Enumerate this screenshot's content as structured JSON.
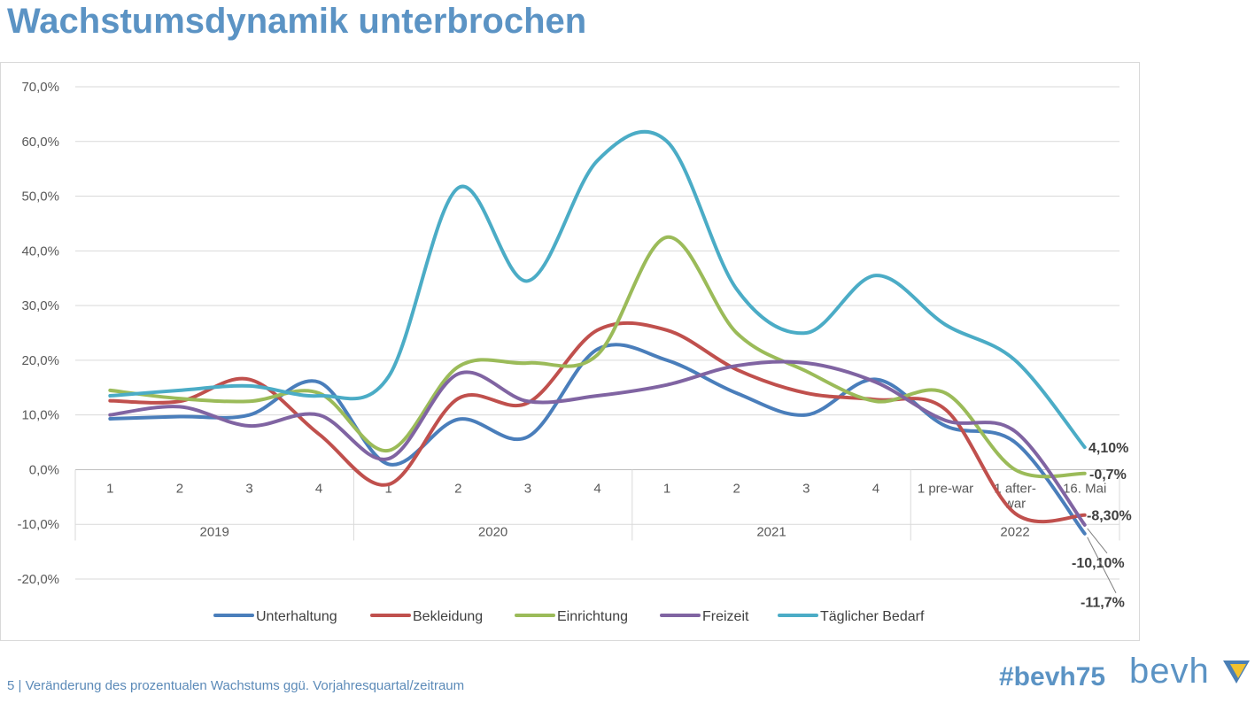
{
  "slide": {
    "title": "Wachstumsdynamik unterbrochen",
    "footer_text": "5 |  Veränderung des prozentualen Wachstums ggü. Vorjahresquartal/zeitraum",
    "hashtag": "#bevh75",
    "logo_text": "bevh"
  },
  "colors": {
    "title": "#5b93c4",
    "footer": "#5b8ab8",
    "logo_mark_blue": "#4a7fb5",
    "logo_mark_yellow": "#f2c12e"
  },
  "chart_data": {
    "type": "line",
    "smooth": true,
    "grid": "horizontal",
    "legend_position": "bottom",
    "ylim": [
      -0.2,
      0.7
    ],
    "yticks": [
      0.7,
      0.6,
      0.5,
      0.4,
      0.3,
      0.2,
      0.1,
      0.0,
      -0.1,
      -0.2
    ],
    "ytick_labels": [
      "70,0%",
      "60,0%",
      "50,0%",
      "40,0%",
      "30,0%",
      "20,0%",
      "10,0%",
      "0,0%",
      "-10,0%",
      "-20,0%"
    ],
    "categories": [
      "1",
      "2",
      "3",
      "4",
      "1",
      "2",
      "3",
      "4",
      "1",
      "2",
      "3",
      "4",
      "1 pre-war",
      "1 after-war",
      "16. Mai"
    ],
    "groups": [
      {
        "label": "2019",
        "count": 4
      },
      {
        "label": "2020",
        "count": 4
      },
      {
        "label": "2021",
        "count": 4
      },
      {
        "label": "2022",
        "count": 3
      }
    ],
    "series": [
      {
        "name": "Unterhaltung",
        "color": "#4a7ebb",
        "values": [
          0.093,
          0.097,
          0.1,
          0.16,
          0.01,
          0.092,
          0.06,
          0.22,
          0.2,
          0.14,
          0.1,
          0.165,
          0.08,
          0.05,
          -0.117
        ]
      },
      {
        "name": "Bekleidung",
        "color": "#c0504d",
        "values": [
          0.126,
          0.125,
          0.165,
          0.065,
          -0.027,
          0.13,
          0.122,
          0.255,
          0.255,
          0.183,
          0.14,
          0.128,
          0.11,
          -0.08,
          -0.083
        ]
      },
      {
        "name": "Einrichtung",
        "color": "#9bbb59",
        "values": [
          0.145,
          0.13,
          0.125,
          0.14,
          0.035,
          0.188,
          0.195,
          0.21,
          0.425,
          0.25,
          0.18,
          0.125,
          0.14,
          0.0,
          -0.007
        ]
      },
      {
        "name": "Freizeit",
        "color": "#8064a2",
        "values": [
          0.1,
          0.115,
          0.08,
          0.1,
          0.02,
          0.175,
          0.125,
          0.135,
          0.155,
          0.19,
          0.195,
          0.16,
          0.09,
          0.07,
          -0.101
        ]
      },
      {
        "name": "Täglicher Bedarf",
        "color": "#4bacc6",
        "values": [
          0.135,
          0.145,
          0.153,
          0.135,
          0.17,
          0.515,
          0.345,
          0.565,
          0.6,
          0.33,
          0.25,
          0.355,
          0.265,
          0.2,
          0.041
        ]
      }
    ],
    "end_labels": [
      {
        "series": "Täglicher Bedarf",
        "text": "4,10%"
      },
      {
        "series": "Einrichtung",
        "text": "-0,7%"
      },
      {
        "series": "Bekleidung",
        "text": "-8,30%"
      },
      {
        "series": "Freizeit",
        "text": "-10,10%"
      },
      {
        "series": "Unterhaltung",
        "text": "-11,7%"
      }
    ]
  }
}
